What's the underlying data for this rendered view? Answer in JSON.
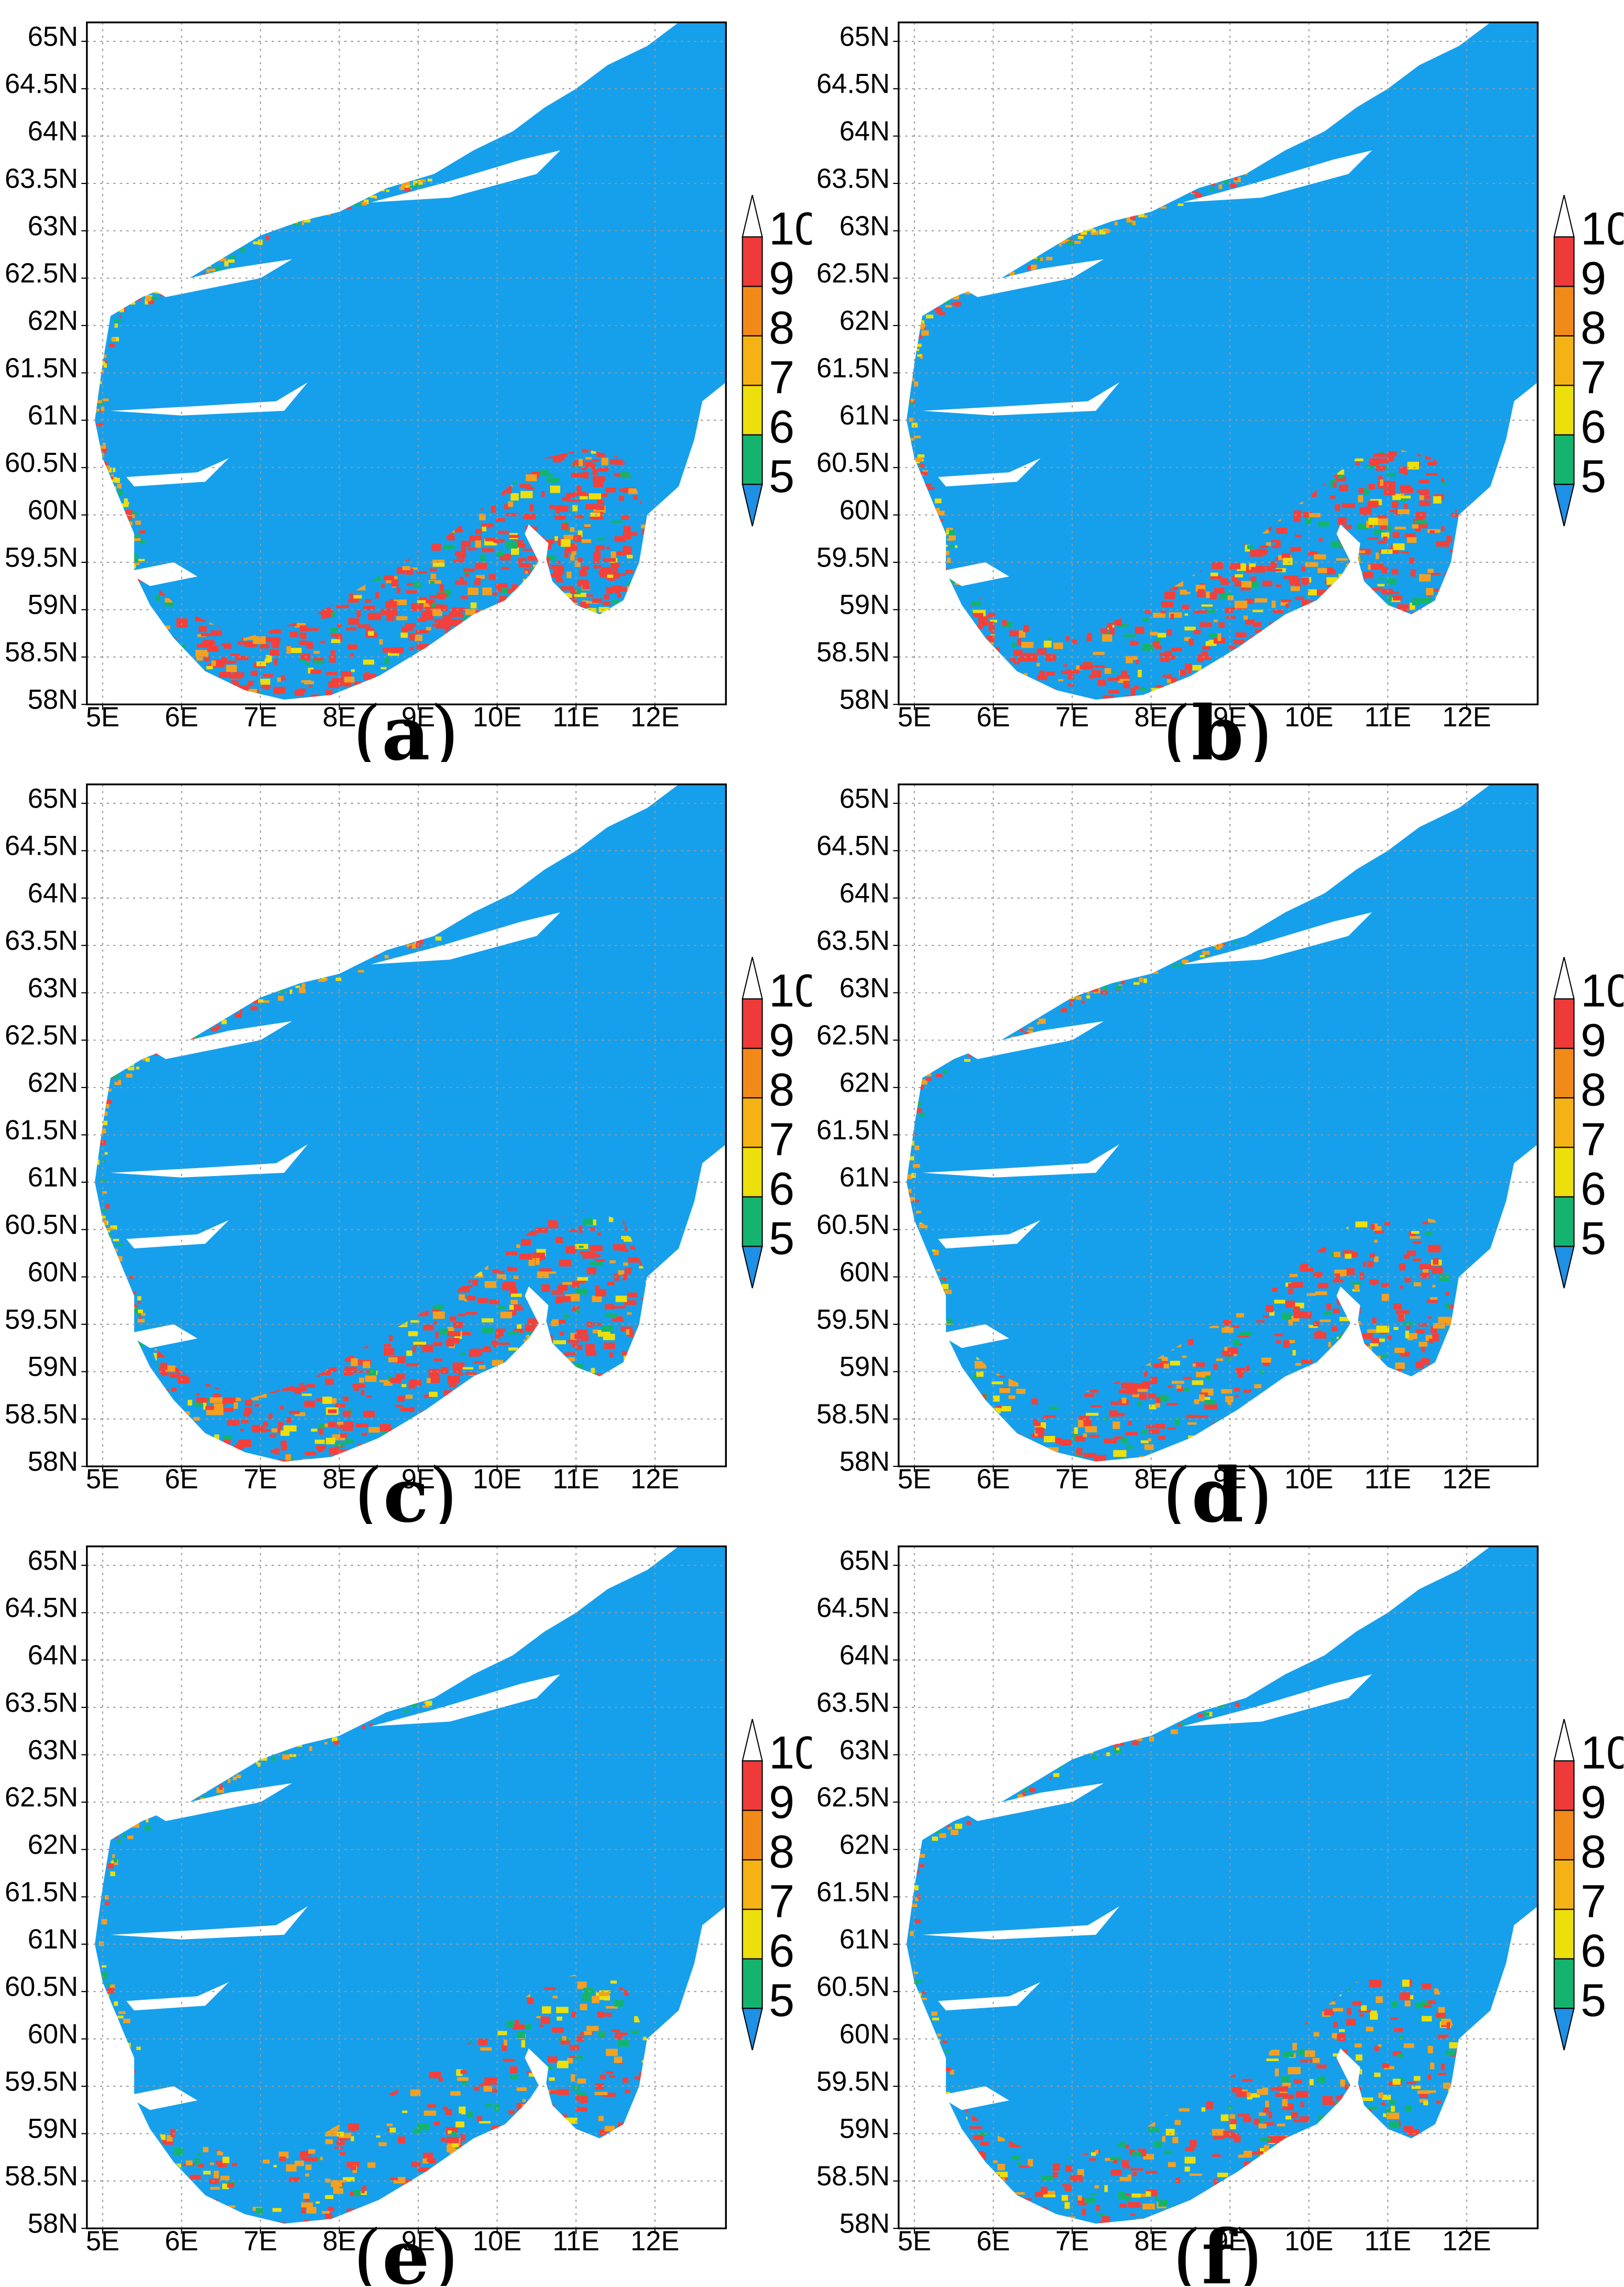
{
  "panels": [
    {
      "id": "a",
      "label": "a",
      "red": 1.0,
      "yellow": 0.3
    },
    {
      "id": "b",
      "label": "b",
      "red": 0.92,
      "yellow": 0.35
    },
    {
      "id": "c",
      "label": "c",
      "red": 0.8,
      "yellow": 0.35
    },
    {
      "id": "d",
      "label": "d",
      "red": 0.65,
      "yellow": 0.45
    },
    {
      "id": "e",
      "label": "e",
      "red": 0.52,
      "yellow": 0.5
    },
    {
      "id": "f",
      "label": "f",
      "red": 0.58,
      "yellow": 0.55
    }
  ],
  "axes": {
    "lon_ticks": [
      "5E",
      "6E",
      "7E",
      "8E",
      "9E",
      "10E",
      "11E",
      "12E"
    ],
    "lat_ticks": [
      "58N",
      "58.5N",
      "59N",
      "59.5N",
      "60N",
      "60.5N",
      "61N",
      "61.5N",
      "62N",
      "62.5N",
      "63N",
      "63.5N",
      "64N",
      "64.5N",
      "65N"
    ],
    "lon_range": [
      4.8,
      12.9
    ],
    "lat_range": [
      58.0,
      65.2
    ]
  },
  "colorbar": {
    "labels": [
      "5",
      "6",
      "7",
      "8",
      "9",
      "10"
    ],
    "colors": [
      "#1e90e6",
      "#15b46e",
      "#ecdf0c",
      "#f5b214",
      "#f28a1a",
      "#ef3a3a",
      "#ffffff"
    ]
  },
  "colors": {
    "land": "#16a0ec",
    "sea": "#ffffff",
    "red": "#f2413c",
    "orange": "#f5a020",
    "yellow": "#ecdf0c",
    "green": "#15b46e"
  }
}
